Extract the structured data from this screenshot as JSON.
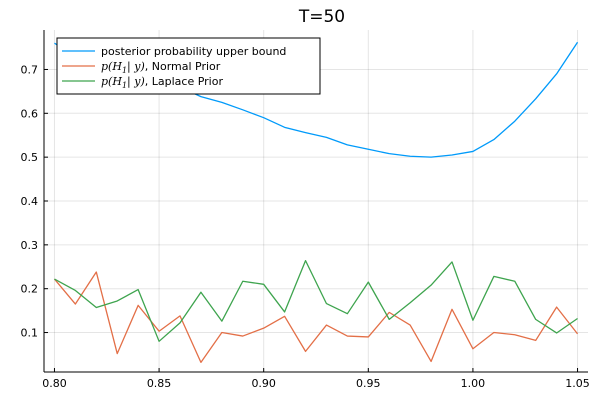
{
  "chart_data": {
    "type": "line",
    "title": "T=50",
    "xlabel": "",
    "ylabel": "",
    "xlim": [
      0.795,
      1.055
    ],
    "ylim": [
      0.01,
      0.79
    ],
    "xticks": [
      0.8,
      0.85,
      0.9,
      0.95,
      1.0,
      1.05
    ],
    "xtick_labels": [
      "0.80",
      "0.85",
      "0.90",
      "0.95",
      "1.00",
      "1.05"
    ],
    "yticks": [
      0.1,
      0.2,
      0.3,
      0.4,
      0.5,
      0.6,
      0.7
    ],
    "ytick_labels": [
      "0.1",
      "0.2",
      "0.3",
      "0.4",
      "0.5",
      "0.6",
      "0.7"
    ],
    "grid": true,
    "legend_position": "top-left",
    "x": [
      0.8,
      0.81,
      0.82,
      0.83,
      0.84,
      0.85,
      0.86,
      0.87,
      0.88,
      0.89,
      0.9,
      0.91,
      0.92,
      0.93,
      0.94,
      0.95,
      0.96,
      0.97,
      0.98,
      0.99,
      1.0,
      1.01,
      1.02,
      1.03,
      1.04,
      1.05
    ],
    "series": [
      {
        "name": "posterior probability upper bound",
        "color": "#009AFA",
        "values": [
          0.76,
          0.73,
          0.71,
          0.7,
          0.69,
          0.675,
          0.66,
          0.638,
          0.625,
          0.608,
          0.59,
          0.568,
          0.556,
          0.545,
          0.528,
          0.518,
          0.508,
          0.502,
          0.5,
          0.505,
          0.513,
          0.54,
          0.582,
          0.633,
          0.69,
          0.762
        ]
      },
      {
        "name": "p(H₁| y), Normal Prior",
        "color": "#E36F47",
        "values": [
          0.222,
          0.165,
          0.238,
          0.052,
          0.162,
          0.103,
          0.138,
          0.032,
          0.1,
          0.092,
          0.11,
          0.137,
          0.057,
          0.117,
          0.092,
          0.09,
          0.146,
          0.117,
          0.034,
          0.153,
          0.063,
          0.1,
          0.095,
          0.082,
          0.158,
          0.097
        ]
      },
      {
        "name": "p(H₁| y), Laplace Prior",
        "color": "#3EA44E",
        "values": [
          0.222,
          0.196,
          0.157,
          0.172,
          0.198,
          0.08,
          0.122,
          0.192,
          0.126,
          0.217,
          0.21,
          0.147,
          0.264,
          0.166,
          0.143,
          0.215,
          0.13,
          0.168,
          0.208,
          0.261,
          0.128,
          0.228,
          0.217,
          0.13,
          0.099,
          0.132
        ]
      }
    ]
  },
  "legend": {
    "items": [
      {
        "label": "posterior probability upper bound"
      },
      {
        "label_math": "p(H",
        "label_sub": "1",
        "label_math_end": "| y)",
        "label_rest": ", Normal Prior"
      },
      {
        "label_math": "p(H",
        "label_sub": "1",
        "label_math_end": "| y)",
        "label_rest": ", Laplace Prior"
      }
    ]
  }
}
